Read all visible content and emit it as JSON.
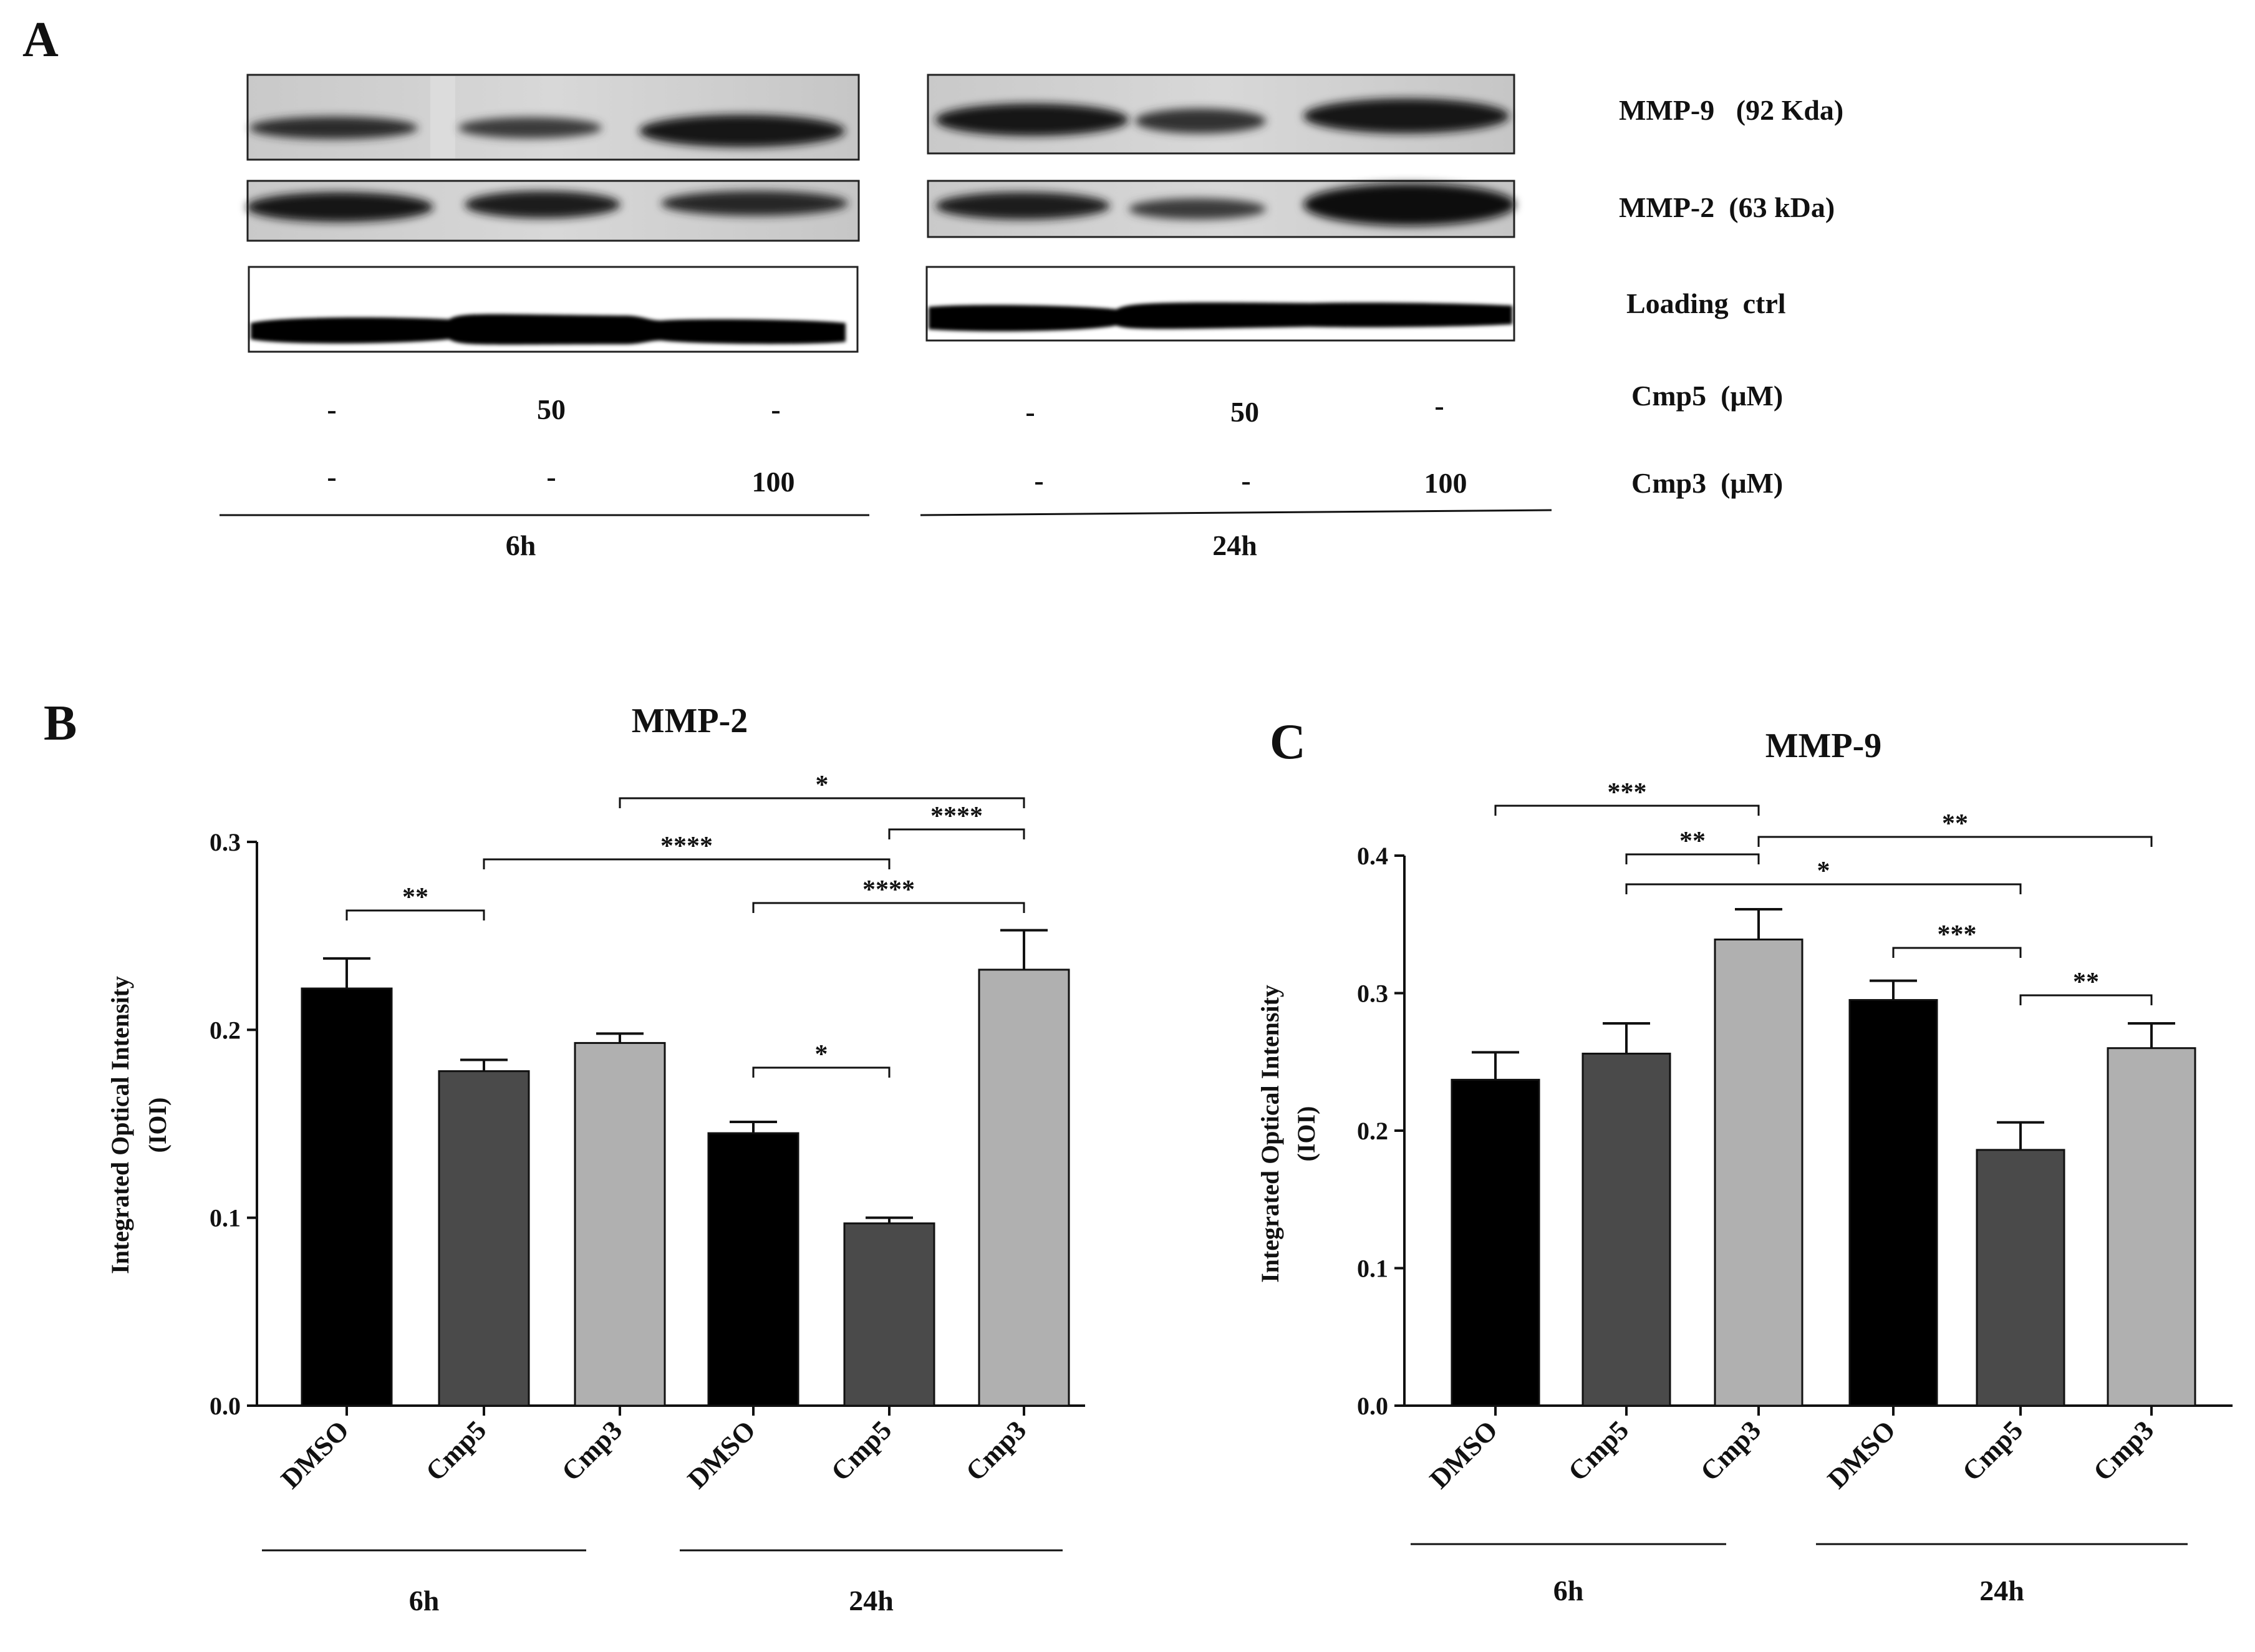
{
  "panels": {
    "a_letter": "A",
    "b_letter": "B",
    "c_letter": "C"
  },
  "western": {
    "bands": [
      {
        "label": "MMP-9   (92 Kda)"
      },
      {
        "label": "MMP-2  (63 kDa)"
      },
      {
        "label": "Loading  ctrl"
      }
    ],
    "treatments": [
      {
        "label": "Cmp5  (μM)",
        "values": [
          "-",
          "50",
          "-",
          "-",
          "50",
          "-"
        ]
      },
      {
        "label": "Cmp3  (μM)",
        "values": [
          "-",
          "-",
          "100",
          "-",
          "-",
          "100"
        ]
      }
    ],
    "groups": [
      "6h",
      "24h"
    ]
  },
  "chart_data": [
    {
      "type": "bar",
      "title": "MMP-2",
      "ylabel": "Integrated  Optical Intensity\n(IOI)",
      "ylabel_lines": [
        "Integrated  Optical Intensity",
        "(IOI)"
      ],
      "categories": [
        "DMSO",
        "Cmp5",
        "Cmp3",
        "DMSO",
        "Cmp5",
        "Cmp3"
      ],
      "groups": [
        {
          "label": "6h",
          "from": 0,
          "to": 2
        },
        {
          "label": "24h",
          "from": 3,
          "to": 5
        }
      ],
      "values": [
        0.222,
        0.178,
        0.193,
        0.145,
        0.097,
        0.232
      ],
      "errors": [
        0.016,
        0.006,
        0.005,
        0.006,
        0.003,
        0.021
      ],
      "bar_colors": [
        "#000000",
        "#4a4a4a",
        "#b0b0b0",
        "#000000",
        "#4a4a4a",
        "#b0b0b0"
      ],
      "ylim": [
        0,
        0.3
      ],
      "yticks": [
        0.0,
        0.1,
        0.2,
        0.3
      ],
      "ytick_labels": [
        "0.0",
        "0.1",
        "0.2",
        "0.3"
      ],
      "significance": [
        {
          "from": 0,
          "to": 1,
          "label": "**"
        },
        {
          "from": 1,
          "to": 4,
          "label": "****"
        },
        {
          "from": 2,
          "to": 5,
          "label": "*"
        },
        {
          "from": 4,
          "to": 5,
          "label": "****"
        },
        {
          "from": 3,
          "to": 5,
          "label": "****"
        },
        {
          "from": 3,
          "to": 4,
          "label": "*"
        }
      ]
    },
    {
      "type": "bar",
      "title": "MMP-9",
      "ylabel": "Integrated  Optical Intensity\n(IOI)",
      "ylabel_lines": [
        "Integrated  Optical Intensity",
        "(IOI)"
      ],
      "categories": [
        "DMSO",
        "Cmp5",
        "Cmp3",
        "DMSO",
        "Cmp5",
        "Cmp3"
      ],
      "groups": [
        {
          "label": "6h",
          "from": 0,
          "to": 2
        },
        {
          "label": "24h",
          "from": 3,
          "to": 5
        }
      ],
      "values": [
        0.237,
        0.256,
        0.339,
        0.295,
        0.186,
        0.26
      ],
      "errors": [
        0.02,
        0.022,
        0.022,
        0.014,
        0.02,
        0.018
      ],
      "bar_colors": [
        "#000000",
        "#4a4a4a",
        "#b0b0b0",
        "#000000",
        "#4a4a4a",
        "#b0b0b0"
      ],
      "ylim": [
        0,
        0.4
      ],
      "yticks": [
        0.0,
        0.1,
        0.2,
        0.3,
        0.4
      ],
      "ytick_labels": [
        "0.0",
        "0.1",
        "0.2",
        "0.3",
        "0.4"
      ],
      "significance": [
        {
          "from": 0,
          "to": 2,
          "label": "***"
        },
        {
          "from": 1,
          "to": 2,
          "label": "**"
        },
        {
          "from": 2,
          "to": 5,
          "label": "**"
        },
        {
          "from": 1,
          "to": 4,
          "label": "*"
        },
        {
          "from": 3,
          "to": 4,
          "label": "***"
        },
        {
          "from": 4,
          "to": 5,
          "label": "**"
        }
      ]
    }
  ]
}
